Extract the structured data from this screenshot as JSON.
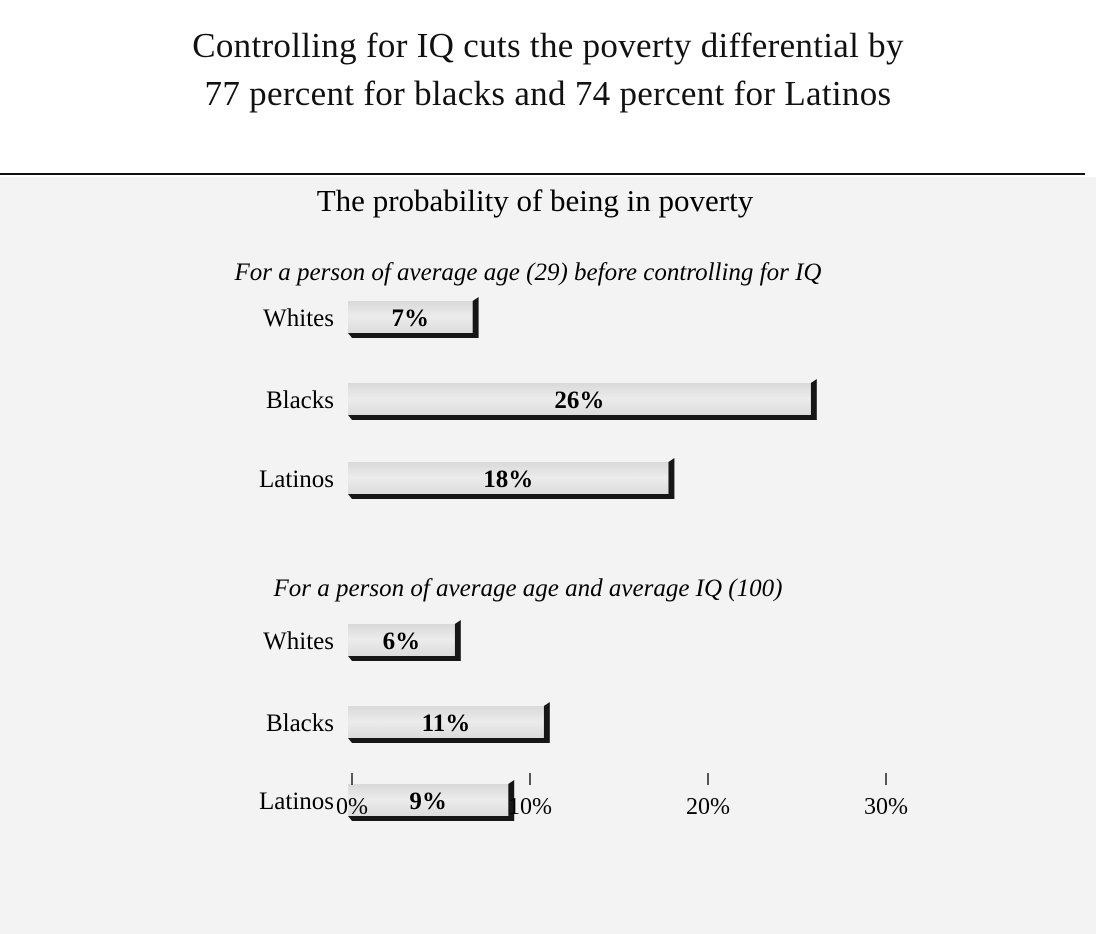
{
  "title_lines": [
    "Controlling for IQ cuts the poverty differential by",
    "77 percent for blacks and 74 percent for Latinos"
  ],
  "chart_data": {
    "type": "bar",
    "orientation": "horizontal",
    "subtitle": "The probability of being in poverty",
    "unit": "%",
    "xlim": [
      0,
      30
    ],
    "xticks": [
      0,
      10,
      20,
      30
    ],
    "xtick_labels": [
      "0%",
      "10%",
      "20%",
      "30%"
    ],
    "grid": false,
    "groups": [
      {
        "label": "For a person of average age (29) before controlling for IQ",
        "categories": [
          "Whites",
          "Blacks",
          "Latinos"
        ],
        "values": [
          7,
          26,
          18
        ],
        "value_labels": [
          "7%",
          "26%",
          "18%"
        ]
      },
      {
        "label": "For a person of average age and average IQ (100)",
        "categories": [
          "Whites",
          "Blacks",
          "Latinos"
        ],
        "values": [
          6,
          11,
          9
        ],
        "value_labels": [
          "6%",
          "11%",
          "9%"
        ]
      }
    ],
    "colors": {
      "bar_fill": "#e4e4e4",
      "bar_shadow": "#161616",
      "panel_bg": "#f3f3f3"
    }
  }
}
